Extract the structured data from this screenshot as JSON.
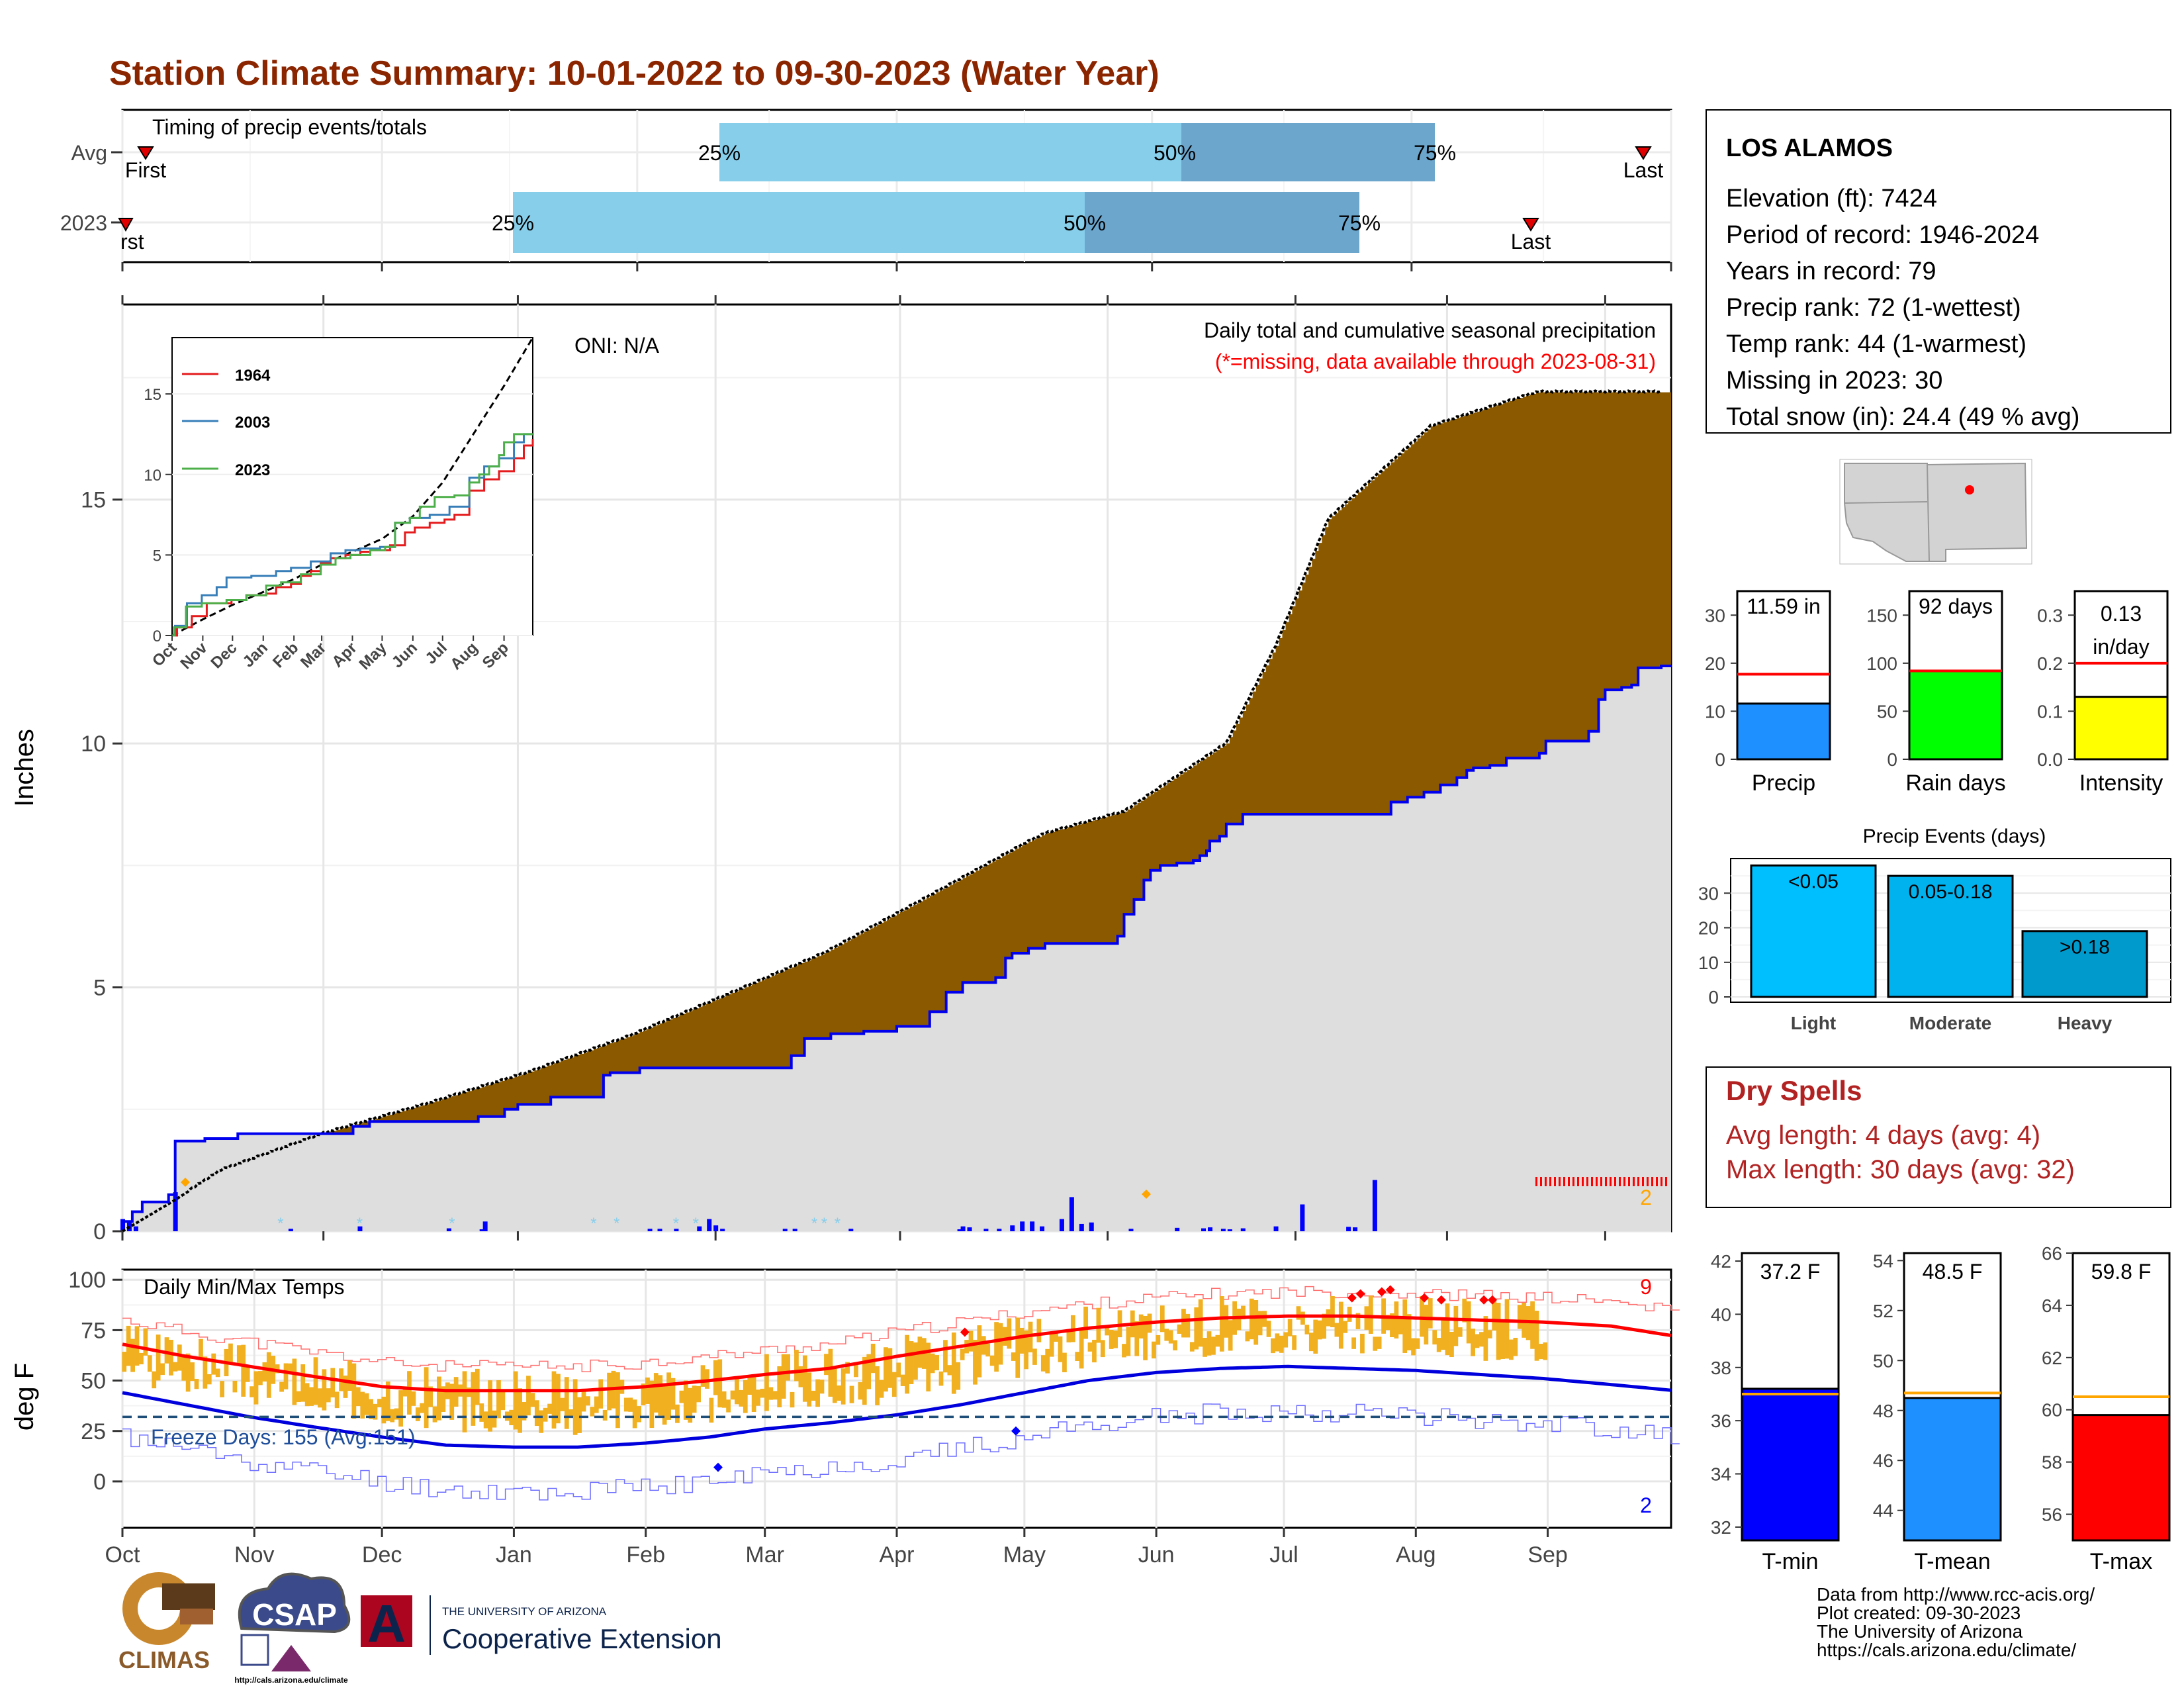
{
  "title": "Station Climate Summary: 10-01-2022 to 09-30-2023 (Water Year)",
  "colors": {
    "title": "#8B2500",
    "brown": "#8B5A00",
    "green": "#008B00",
    "cum_fill": "#DEDEDE",
    "avg_light": "#87CEEB",
    "avg_dark": "#6CA6CD",
    "tmin": "#0000FF",
    "tmean": "#1E90FF",
    "tmax": "#FF0000",
    "bar_orange": "#F0B020",
    "precip_blue": "#1E90FF",
    "raindays_green": "#00FF00",
    "intensity_yellow": "#FFFF00",
    "dryspell": "#B22222"
  },
  "months": [
    "Oct",
    "Nov",
    "Dec",
    "Jan",
    "Feb",
    "Mar",
    "Apr",
    "May",
    "Jun",
    "Jul",
    "Aug",
    "Sep"
  ],
  "timing": {
    "label": "Timing of precip events/totals",
    "rows": [
      {
        "name": "Avg",
        "first": "First",
        "q25": "25%",
        "q50": "50%",
        "q75": "75%",
        "last": "Last",
        "first_day": 5,
        "q25_day": 145,
        "q50_day": 251,
        "q75_day": 297,
        "last_day": 357
      },
      {
        "name": "2023",
        "first": "rst",
        "q25": "25%",
        "q50": "50%",
        "q75": "75%",
        "last": "Last",
        "first_day": 1,
        "q25_day": 98,
        "q50_day": 229,
        "q75_day": 282,
        "last_day": 331
      }
    ]
  },
  "precip_panel": {
    "ylabel": "Inches",
    "yticks": [
      "0",
      "5",
      "10",
      "15"
    ],
    "ylim": [
      0,
      19
    ],
    "caption": "Daily total and cumulative seasonal precipitation",
    "missing_note": "(*=missing, data available through 2023-08-31)",
    "oni": "ONI: N/A",
    "missing_count": "2"
  },
  "inset": {
    "legend": [
      "1964",
      "2003",
      "2023"
    ],
    "yticks": [
      "0",
      "5",
      "10",
      "15"
    ],
    "months": [
      "Oct",
      "Nov",
      "Dec",
      "Jan",
      "Feb",
      "Mar",
      "Apr",
      "May",
      "Jun",
      "Jul",
      "Aug",
      "Sep"
    ]
  },
  "temp_panel": {
    "label": "Daily Min/Max Temps",
    "ylabel": "deg F",
    "yticks": [
      "0",
      "25",
      "50",
      "75",
      "100"
    ],
    "freeze": "Freeze Days: 155 (Avg:151)",
    "record_high_count": "9",
    "record_low_count": "2"
  },
  "station": {
    "name": "LOS ALAMOS",
    "lines": [
      "Elevation (ft): 7424",
      "Period of record: 1946-2024",
      "Years in record: 79",
      "Precip rank: 72 (1-wettest)",
      "Temp rank: 44 (1-warmest)",
      "Missing in 2023: 30",
      "Total snow (in): 24.4 (49 % avg)"
    ]
  },
  "mini_bars": [
    {
      "label": "Precip",
      "value_text": "11.59 in",
      "value": 11.59,
      "avg": 17.7,
      "ylim": [
        0,
        35
      ],
      "ticks": [
        "0",
        "10",
        "20",
        "30"
      ],
      "color": "#1E90FF"
    },
    {
      "label": "Rain days",
      "value_text": "92 days",
      "value": 92,
      "avg": 92,
      "ylim": [
        0,
        175
      ],
      "ticks": [
        "0",
        "50",
        "100",
        "150"
      ],
      "color": "#00FF00"
    },
    {
      "label": "Intensity",
      "value_text": "0.13 in/day",
      "value_line1": "0.13",
      "value_line2": "in/day",
      "value": 0.13,
      "avg": 0.2,
      "ylim": [
        0,
        0.35
      ],
      "ticks": [
        "0.0",
        "0.1",
        "0.2",
        "0.3"
      ],
      "color": "#FFFF00"
    }
  ],
  "events": {
    "title": "Precip Events (days)",
    "ticks": [
      "0",
      "10",
      "20",
      "30"
    ],
    "bars": [
      {
        "label": "Light",
        "inner": "<0.05",
        "value": 38,
        "color": "#00BFFF"
      },
      {
        "label": "Moderate",
        "inner": "0.05-0.18",
        "value": 35,
        "color": "#00B2EE"
      },
      {
        "label": "Heavy",
        "inner": ">0.18",
        "value": 19,
        "color": "#009ACD"
      }
    ]
  },
  "dry_spells": {
    "title": "Dry Spells",
    "avg": "Avg length: 4 days (avg: 4)",
    "max": "Max length: 30 days (avg: 32)"
  },
  "temp_bars": [
    {
      "label": "T-min",
      "value_text": "37.2 F",
      "value": 37.2,
      "avg": 37.0,
      "ylim": [
        31.5,
        42.3
      ],
      "ticks": [
        "32",
        "34",
        "36",
        "38",
        "40",
        "42"
      ],
      "color": "#0000FF"
    },
    {
      "label": "T-mean",
      "value_text": "48.5 F",
      "value": 48.5,
      "avg": 48.7,
      "ylim": [
        42.8,
        54.3
      ],
      "ticks": [
        "44",
        "46",
        "48",
        "50",
        "52",
        "54"
      ],
      "color": "#1E90FF"
    },
    {
      "label": "T-max",
      "value_text": "59.8 F",
      "value": 59.8,
      "avg": 60.5,
      "ylim": [
        55,
        66
      ],
      "ticks": [
        "56",
        "58",
        "60",
        "62",
        "64",
        "66"
      ],
      "color": "#FF0000"
    }
  ],
  "credits": [
    "Data from http://www.rcc-acis.org/",
    "Plot created: 09-30-2023",
    "The University of Arizona",
    "https://cals.arizona.edu/climate/"
  ],
  "logos": {
    "climas": "CLIMAS",
    "csap": "CSAP",
    "csap_url": "http://cals.arizona.edu/climate",
    "ua_small": "THE UNIVERSITY OF ARIZONA",
    "ua_big": "Cooperative Extension",
    "ua_letter": "A"
  },
  "chart_data": [
    {
      "type": "area",
      "title": "Daily total and cumulative seasonal precipitation",
      "ylabel": "Inches",
      "ylim": [
        0,
        19
      ],
      "cumulative_avg_knots": [
        [
          0,
          0
        ],
        [
          15,
          0.6
        ],
        [
          30,
          1.25
        ],
        [
          61,
          2.0
        ],
        [
          92,
          2.6
        ],
        [
          123,
          3.25
        ],
        [
          154,
          4.0
        ],
        [
          182,
          4.8
        ],
        [
          213,
          5.7
        ],
        [
          243,
          6.8
        ],
        [
          274,
          7.95
        ],
        [
          280,
          8.15
        ],
        [
          304,
          8.6
        ],
        [
          335,
          10.0
        ],
        [
          350,
          12.0
        ],
        [
          366,
          14.6
        ],
        [
          397,
          16.5
        ],
        [
          427,
          17.15
        ],
        [
          430,
          17.2
        ]
      ],
      "cumulative_2023_knots": [
        [
          0,
          0.2
        ],
        [
          3,
          0.4
        ],
        [
          6,
          0.6
        ],
        [
          14,
          0.75
        ],
        [
          16,
          1.85
        ],
        [
          25,
          1.9
        ],
        [
          35,
          2.0
        ],
        [
          65,
          2.0
        ],
        [
          70,
          2.15
        ],
        [
          75,
          2.25
        ],
        [
          95,
          2.25
        ],
        [
          105,
          2.25
        ],
        [
          108,
          2.35
        ],
        [
          116,
          2.5
        ],
        [
          120,
          2.6
        ],
        [
          130,
          2.75
        ],
        [
          145,
          2.75
        ],
        [
          146,
          3.2
        ],
        [
          148,
          3.25
        ],
        [
          157,
          3.35
        ],
        [
          170,
          3.35
        ],
        [
          185,
          3.35
        ],
        [
          200,
          3.35
        ],
        [
          203,
          3.6
        ],
        [
          207,
          3.95
        ],
        [
          215,
          4.05
        ],
        [
          225,
          4.1
        ],
        [
          235,
          4.2
        ],
        [
          245,
          4.5
        ],
        [
          250,
          4.9
        ],
        [
          255,
          5.1
        ],
        [
          265,
          5.2
        ],
        [
          268,
          5.6
        ],
        [
          270,
          5.7
        ],
        [
          275,
          5.8
        ],
        [
          280,
          5.9
        ],
        [
          290,
          5.9
        ],
        [
          300,
          5.9
        ],
        [
          302,
          6.05
        ],
        [
          304,
          6.5
        ],
        [
          307,
          6.8
        ],
        [
          310,
          7.2
        ],
        [
          312,
          7.4
        ],
        [
          315,
          7.5
        ],
        [
          318,
          7.5
        ],
        [
          320,
          7.55
        ],
        [
          325,
          7.6
        ],
        [
          327,
          7.7
        ],
        [
          329,
          7.8
        ],
        [
          330,
          8.0
        ],
        [
          333,
          8.1
        ],
        [
          335,
          8.35
        ],
        [
          340,
          8.55
        ],
        [
          350,
          8.55
        ],
        [
          365,
          8.55
        ],
        [
          380,
          8.55
        ],
        [
          385,
          8.8
        ],
        [
          390,
          8.9
        ],
        [
          395,
          9.0
        ],
        [
          400,
          9.15
        ],
        [
          405,
          9.3
        ],
        [
          408,
          9.45
        ],
        [
          410,
          9.5
        ],
        [
          415,
          9.55
        ],
        [
          420,
          9.7
        ],
        [
          430,
          9.8
        ],
        [
          432,
          10.05
        ],
        [
          440,
          10.05
        ],
        [
          445,
          10.25
        ],
        [
          448,
          10.9
        ],
        [
          450,
          11.1
        ],
        [
          455,
          11.15
        ],
        [
          458,
          11.2
        ],
        [
          460,
          11.55
        ],
        [
          467,
          11.59
        ]
      ],
      "daily_bars_2023": [
        [
          0,
          0.25
        ],
        [
          2,
          0.2
        ],
        [
          4,
          0.1
        ],
        [
          16,
          0.8
        ],
        [
          51,
          0.05
        ],
        [
          72,
          0.1
        ],
        [
          99,
          0.06
        ],
        [
          109,
          0.04
        ],
        [
          110,
          0.2
        ],
        [
          160,
          0.05
        ],
        [
          163,
          0.05
        ],
        [
          168,
          0.05
        ],
        [
          175,
          0.1
        ],
        [
          178,
          0.25
        ],
        [
          180,
          0.12
        ],
        [
          182,
          0.05
        ],
        [
          201,
          0.05
        ],
        [
          204,
          0.05
        ],
        [
          221,
          0.05
        ],
        [
          254,
          0.04
        ],
        [
          255,
          0.1
        ],
        [
          257,
          0.08
        ],
        [
          262,
          0.05
        ],
        [
          266,
          0.05
        ],
        [
          270,
          0.12
        ],
        [
          273,
          0.2
        ],
        [
          276,
          0.2
        ],
        [
          279,
          0.1
        ],
        [
          285,
          0.25
        ],
        [
          288,
          0.7
        ],
        [
          291,
          0.15
        ],
        [
          294,
          0.18
        ],
        [
          306,
          0.05
        ],
        [
          320,
          0.07
        ],
        [
          328,
          0.06
        ],
        [
          330,
          0.08
        ],
        [
          334,
          0.05
        ],
        [
          336,
          0.04
        ],
        [
          340,
          0.06
        ],
        [
          350,
          0.1
        ],
        [
          358,
          0.55
        ],
        [
          372,
          0.09
        ],
        [
          374,
          0.08
        ],
        [
          380,
          1.05
        ]
      ]
    },
    {
      "type": "line",
      "title": "inset cumulative precip",
      "series": [
        {
          "name": "1964"
        },
        {
          "name": "2003"
        },
        {
          "name": "2023"
        }
      ],
      "ylim": [
        0,
        18.5
      ]
    },
    {
      "type": "bar",
      "title": "Daily Min/Max Temps",
      "ylabel": "deg F",
      "ylim": [
        -23,
        105
      ],
      "freeze_line": 32,
      "normal_max_knots": [
        [
          0,
          68
        ],
        [
          15,
          62
        ],
        [
          30,
          57
        ],
        [
          45,
          52
        ],
        [
          61,
          47
        ],
        [
          76,
          45
        ],
        [
          92,
          45
        ],
        [
          107,
          45
        ],
        [
          123,
          47
        ],
        [
          138,
          50
        ],
        [
          151,
          53
        ],
        [
          166,
          56
        ],
        [
          182,
          62
        ],
        [
          197,
          67
        ],
        [
          212,
          72
        ],
        [
          227,
          76
        ],
        [
          243,
          79
        ],
        [
          258,
          81
        ],
        [
          274,
          82
        ],
        [
          289,
          82
        ],
        [
          304,
          81
        ],
        [
          319,
          80
        ],
        [
          334,
          79
        ],
        [
          350,
          77
        ],
        [
          365,
          72
        ]
      ],
      "normal_min_knots": [
        [
          0,
          44
        ],
        [
          15,
          38
        ],
        [
          30,
          32
        ],
        [
          45,
          27
        ],
        [
          61,
          22
        ],
        [
          76,
          18
        ],
        [
          92,
          17
        ],
        [
          107,
          17
        ],
        [
          123,
          19
        ],
        [
          138,
          22
        ],
        [
          151,
          26
        ],
        [
          166,
          29
        ],
        [
          182,
          33
        ],
        [
          197,
          38
        ],
        [
          212,
          44
        ],
        [
          227,
          50
        ],
        [
          243,
          54
        ],
        [
          258,
          56
        ],
        [
          274,
          57
        ],
        [
          289,
          56
        ],
        [
          304,
          55
        ],
        [
          319,
          53
        ],
        [
          334,
          51
        ],
        [
          350,
          48
        ],
        [
          365,
          45
        ]
      ]
    },
    {
      "type": "bar",
      "title": "Precip Events (days)",
      "categories": [
        "Light",
        "Moderate",
        "Heavy"
      ],
      "values": [
        38,
        35,
        19
      ],
      "ylim": [
        0,
        40
      ]
    },
    {
      "type": "bar",
      "title": "Precip",
      "values": [
        11.59
      ],
      "average": 17.7
    },
    {
      "type": "bar",
      "title": "Rain days",
      "values": [
        92
      ],
      "average": 92
    },
    {
      "type": "bar",
      "title": "Intensity",
      "values": [
        0.13
      ],
      "average": 0.2
    },
    {
      "type": "bar",
      "title": "T-min",
      "values": [
        37.2
      ],
      "average": 37.0
    },
    {
      "type": "bar",
      "title": "T-mean",
      "values": [
        48.5
      ],
      "average": 48.7
    },
    {
      "type": "bar",
      "title": "T-max",
      "values": [
        59.8
      ],
      "average": 60.5
    }
  ]
}
